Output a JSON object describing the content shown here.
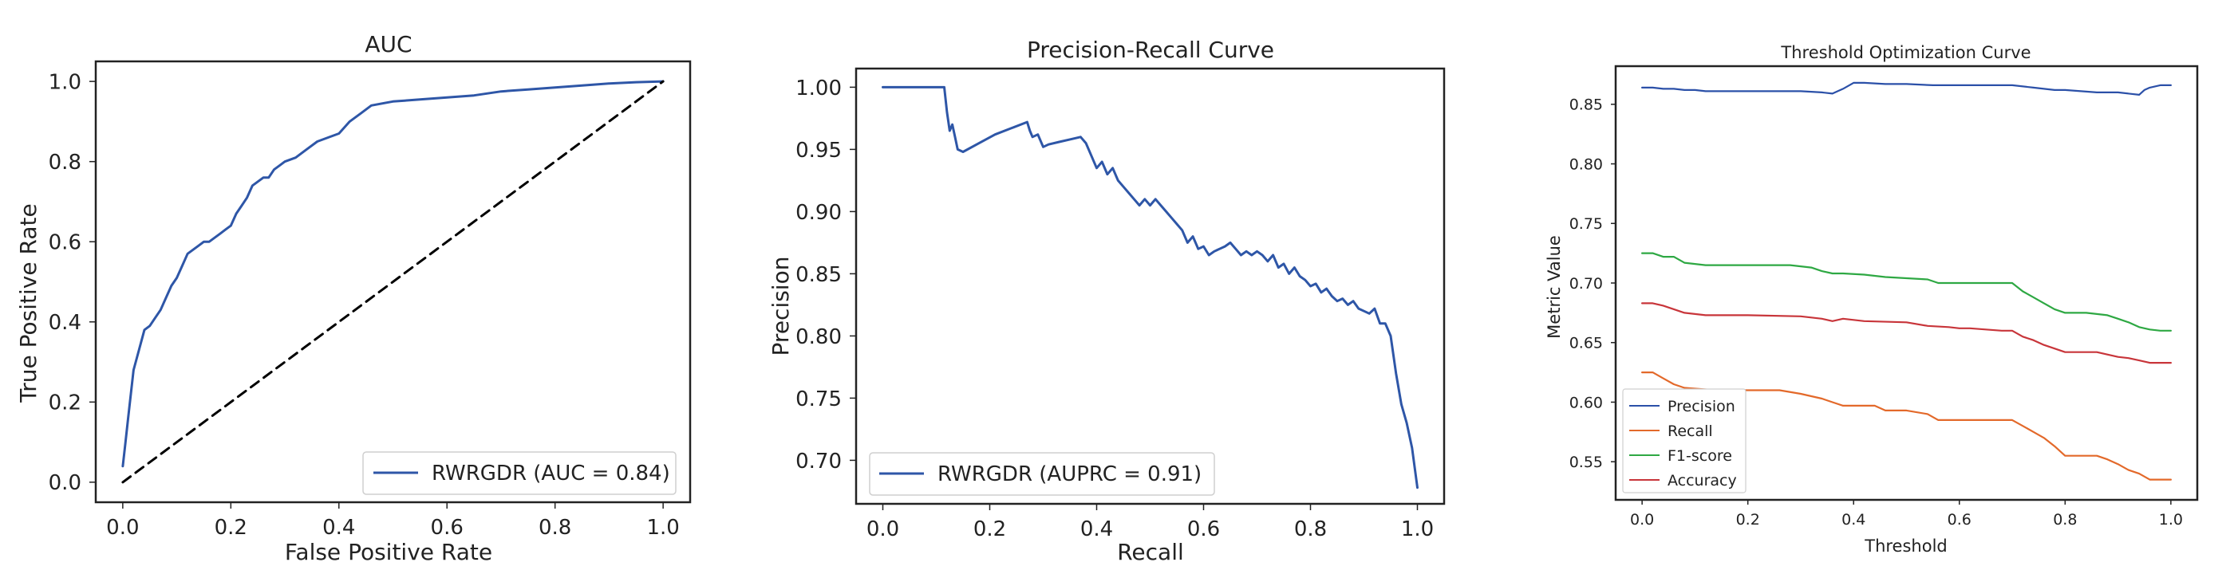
{
  "chart_data": [
    {
      "type": "line",
      "title": "AUC",
      "xlabel": "False Positive Rate",
      "ylabel": "True Positive Rate",
      "xlim": [
        -0.05,
        1.05
      ],
      "ylim": [
        -0.05,
        1.05
      ],
      "xticks": [
        0.0,
        0.2,
        0.4,
        0.6,
        0.8,
        1.0
      ],
      "yticks": [
        0.0,
        0.2,
        0.4,
        0.6,
        0.8,
        1.0
      ],
      "xtick_labels": [
        "0.0",
        "0.2",
        "0.4",
        "0.6",
        "0.8",
        "1.0"
      ],
      "ytick_labels": [
        "0.0",
        "0.2",
        "0.4",
        "0.6",
        "0.8",
        "1.0"
      ],
      "grid": false,
      "legend_position": "lower-right",
      "series": [
        {
          "name": "RWRGDR (AUC = 0.84)",
          "color": "#2e56a7",
          "x": [
            0.0,
            0.005,
            0.01,
            0.02,
            0.03,
            0.04,
            0.05,
            0.06,
            0.07,
            0.08,
            0.09,
            0.1,
            0.11,
            0.12,
            0.13,
            0.14,
            0.15,
            0.16,
            0.17,
            0.18,
            0.19,
            0.2,
            0.21,
            0.22,
            0.23,
            0.24,
            0.25,
            0.26,
            0.27,
            0.28,
            0.29,
            0.3,
            0.32,
            0.34,
            0.36,
            0.38,
            0.4,
            0.42,
            0.44,
            0.46,
            0.5,
            0.55,
            0.6,
            0.65,
            0.7,
            0.75,
            0.8,
            0.85,
            0.9,
            0.95,
            1.0
          ],
          "y": [
            0.04,
            0.1,
            0.16,
            0.28,
            0.33,
            0.38,
            0.39,
            0.41,
            0.43,
            0.46,
            0.49,
            0.51,
            0.54,
            0.57,
            0.58,
            0.59,
            0.6,
            0.6,
            0.61,
            0.62,
            0.63,
            0.64,
            0.67,
            0.69,
            0.71,
            0.74,
            0.75,
            0.76,
            0.76,
            0.78,
            0.79,
            0.8,
            0.81,
            0.83,
            0.85,
            0.86,
            0.87,
            0.9,
            0.92,
            0.94,
            0.95,
            0.955,
            0.96,
            0.965,
            0.975,
            0.98,
            0.985,
            0.99,
            0.995,
            0.998,
            1.0
          ]
        },
        {
          "name": "",
          "color": "#000000",
          "dashed": true,
          "x": [
            0.0,
            1.0
          ],
          "y": [
            0.0,
            1.0
          ]
        }
      ]
    },
    {
      "type": "line",
      "title": "Precision-Recall Curve",
      "xlabel": "Recall",
      "ylabel": "Precision",
      "xlim": [
        -0.05,
        1.05
      ],
      "ylim": [
        0.665,
        1.015
      ],
      "xticks": [
        0.0,
        0.2,
        0.4,
        0.6,
        0.8,
        1.0
      ],
      "yticks": [
        0.7,
        0.75,
        0.8,
        0.85,
        0.9,
        0.95,
        1.0
      ],
      "xtick_labels": [
        "0.0",
        "0.2",
        "0.4",
        "0.6",
        "0.8",
        "1.0"
      ],
      "ytick_labels": [
        "0.70",
        "0.75",
        "0.80",
        "0.85",
        "0.90",
        "0.95",
        "1.00"
      ],
      "grid": false,
      "legend_position": "lower-left",
      "series": [
        {
          "name": "RWRGDR (AUPRC = 0.91)",
          "color": "#2e56a7",
          "x": [
            0.0,
            0.03,
            0.06,
            0.09,
            0.115,
            0.12,
            0.125,
            0.13,
            0.135,
            0.14,
            0.15,
            0.18,
            0.21,
            0.24,
            0.27,
            0.275,
            0.28,
            0.29,
            0.3,
            0.31,
            0.33,
            0.35,
            0.37,
            0.38,
            0.39,
            0.4,
            0.41,
            0.42,
            0.43,
            0.44,
            0.45,
            0.46,
            0.47,
            0.48,
            0.49,
            0.5,
            0.51,
            0.52,
            0.53,
            0.54,
            0.55,
            0.56,
            0.57,
            0.58,
            0.59,
            0.6,
            0.61,
            0.62,
            0.63,
            0.64,
            0.65,
            0.66,
            0.67,
            0.68,
            0.69,
            0.7,
            0.71,
            0.72,
            0.73,
            0.74,
            0.75,
            0.76,
            0.77,
            0.78,
            0.79,
            0.8,
            0.81,
            0.82,
            0.83,
            0.84,
            0.85,
            0.86,
            0.87,
            0.88,
            0.89,
            0.9,
            0.91,
            0.92,
            0.93,
            0.94,
            0.95,
            0.96,
            0.97,
            0.98,
            0.99,
            1.0
          ],
          "y": [
            1.0,
            1.0,
            1.0,
            1.0,
            1.0,
            0.98,
            0.965,
            0.97,
            0.96,
            0.95,
            0.948,
            0.955,
            0.962,
            0.967,
            0.972,
            0.965,
            0.96,
            0.962,
            0.952,
            0.954,
            0.956,
            0.958,
            0.96,
            0.955,
            0.945,
            0.935,
            0.94,
            0.93,
            0.935,
            0.925,
            0.92,
            0.915,
            0.91,
            0.905,
            0.91,
            0.905,
            0.91,
            0.905,
            0.9,
            0.895,
            0.89,
            0.885,
            0.875,
            0.88,
            0.87,
            0.872,
            0.865,
            0.868,
            0.87,
            0.872,
            0.875,
            0.87,
            0.865,
            0.868,
            0.865,
            0.868,
            0.865,
            0.86,
            0.865,
            0.855,
            0.858,
            0.85,
            0.855,
            0.848,
            0.845,
            0.84,
            0.842,
            0.835,
            0.838,
            0.832,
            0.828,
            0.83,
            0.825,
            0.828,
            0.822,
            0.82,
            0.818,
            0.822,
            0.81,
            0.81,
            0.8,
            0.77,
            0.745,
            0.73,
            0.71,
            0.678
          ]
        }
      ]
    },
    {
      "type": "line",
      "title": "Threshold Optimization Curve",
      "xlabel": "Threshold",
      "ylabel": "Metric Value",
      "xlim": [
        -0.05,
        1.05
      ],
      "ylim": [
        0.518,
        0.882
      ],
      "xticks": [
        0.0,
        0.2,
        0.4,
        0.6,
        0.8,
        1.0
      ],
      "yticks": [
        0.55,
        0.6,
        0.65,
        0.7,
        0.75,
        0.8,
        0.85
      ],
      "xtick_labels": [
        "0.0",
        "0.2",
        "0.4",
        "0.6",
        "0.8",
        "1.0"
      ],
      "ytick_labels": [
        "0.55",
        "0.60",
        "0.65",
        "0.70",
        "0.75",
        "0.80",
        "0.85"
      ],
      "grid": false,
      "legend_position": "lower-left",
      "series": [
        {
          "name": "Precision",
          "color": "#2b50a8",
          "x": [
            0.0,
            0.02,
            0.04,
            0.06,
            0.08,
            0.1,
            0.12,
            0.14,
            0.2,
            0.26,
            0.3,
            0.34,
            0.36,
            0.37,
            0.38,
            0.4,
            0.42,
            0.46,
            0.5,
            0.55,
            0.6,
            0.64,
            0.7,
            0.74,
            0.76,
            0.78,
            0.8,
            0.86,
            0.9,
            0.94,
            0.95,
            0.96,
            0.98,
            1.0
          ],
          "y": [
            0.864,
            0.864,
            0.863,
            0.863,
            0.862,
            0.862,
            0.861,
            0.861,
            0.861,
            0.861,
            0.861,
            0.86,
            0.859,
            0.861,
            0.863,
            0.868,
            0.868,
            0.867,
            0.867,
            0.866,
            0.866,
            0.866,
            0.866,
            0.864,
            0.863,
            0.862,
            0.862,
            0.86,
            0.86,
            0.858,
            0.862,
            0.864,
            0.866,
            0.866
          ]
        },
        {
          "name": "Recall",
          "color": "#e3692a",
          "x": [
            0.0,
            0.02,
            0.04,
            0.06,
            0.08,
            0.14,
            0.2,
            0.26,
            0.3,
            0.32,
            0.34,
            0.36,
            0.38,
            0.4,
            0.44,
            0.46,
            0.5,
            0.54,
            0.56,
            0.6,
            0.7,
            0.72,
            0.74,
            0.76,
            0.78,
            0.8,
            0.86,
            0.88,
            0.9,
            0.92,
            0.94,
            0.96,
            0.98,
            1.0
          ],
          "y": [
            0.625,
            0.625,
            0.62,
            0.615,
            0.612,
            0.61,
            0.61,
            0.61,
            0.607,
            0.605,
            0.603,
            0.6,
            0.597,
            0.597,
            0.597,
            0.593,
            0.593,
            0.59,
            0.585,
            0.585,
            0.585,
            0.58,
            0.575,
            0.57,
            0.563,
            0.555,
            0.555,
            0.552,
            0.548,
            0.543,
            0.54,
            0.535,
            0.535,
            0.535
          ]
        },
        {
          "name": "F1-score",
          "color": "#2ea843",
          "x": [
            0.0,
            0.02,
            0.04,
            0.06,
            0.08,
            0.12,
            0.2,
            0.28,
            0.32,
            0.34,
            0.36,
            0.38,
            0.42,
            0.46,
            0.54,
            0.56,
            0.6,
            0.7,
            0.72,
            0.74,
            0.76,
            0.78,
            0.8,
            0.84,
            0.88,
            0.9,
            0.92,
            0.94,
            0.96,
            0.98,
            1.0
          ],
          "y": [
            0.725,
            0.725,
            0.722,
            0.722,
            0.717,
            0.715,
            0.715,
            0.715,
            0.713,
            0.71,
            0.708,
            0.708,
            0.707,
            0.705,
            0.703,
            0.7,
            0.7,
            0.7,
            0.693,
            0.688,
            0.683,
            0.678,
            0.675,
            0.675,
            0.673,
            0.67,
            0.667,
            0.663,
            0.661,
            0.66,
            0.66
          ]
        },
        {
          "name": "Accuracy",
          "color": "#c8353a",
          "x": [
            0.0,
            0.02,
            0.04,
            0.06,
            0.08,
            0.12,
            0.2,
            0.3,
            0.34,
            0.36,
            0.38,
            0.42,
            0.5,
            0.54,
            0.58,
            0.6,
            0.62,
            0.68,
            0.7,
            0.72,
            0.74,
            0.76,
            0.78,
            0.8,
            0.86,
            0.88,
            0.9,
            0.92,
            0.94,
            0.96,
            0.98,
            1.0
          ],
          "y": [
            0.683,
            0.683,
            0.681,
            0.678,
            0.675,
            0.673,
            0.673,
            0.672,
            0.67,
            0.668,
            0.67,
            0.668,
            0.667,
            0.664,
            0.663,
            0.662,
            0.662,
            0.66,
            0.66,
            0.655,
            0.652,
            0.648,
            0.645,
            0.642,
            0.642,
            0.64,
            0.638,
            0.637,
            0.635,
            0.633,
            0.633,
            0.633
          ]
        }
      ]
    }
  ]
}
